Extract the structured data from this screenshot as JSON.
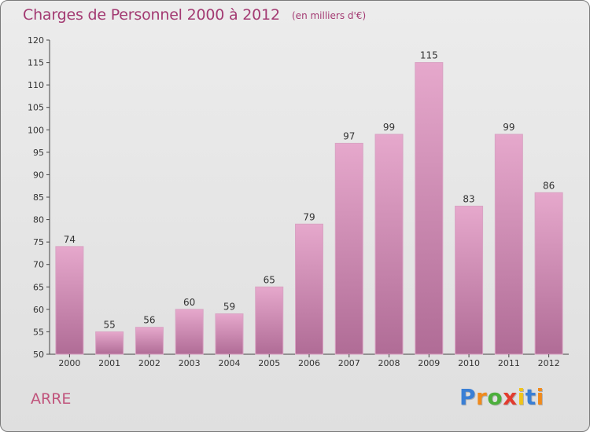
{
  "title": "Charges de Personnel 2000 à 2012",
  "subtitle": "(en milliers d'€)",
  "commune": "ARRE",
  "logo": {
    "letters": [
      {
        "ch": "P",
        "color": "#3a7fd5"
      },
      {
        "ch": "r",
        "color": "#f08a1c"
      },
      {
        "ch": "o",
        "color": "#4caf3c"
      },
      {
        "ch": "x",
        "color": "#e23b2e"
      },
      {
        "ch": "i",
        "color": "#f0c419"
      },
      {
        "ch": "t",
        "color": "#3a7fd5"
      },
      {
        "ch": "i",
        "color": "#f08a1c"
      }
    ]
  },
  "colors": {
    "bar_top": "#e6a8cc",
    "bar_bottom": "#b06c96",
    "axis": "#444444",
    "grid": "#9a9a9a"
  },
  "chart_data": {
    "type": "bar",
    "categories": [
      "2000",
      "2001",
      "2002",
      "2003",
      "2004",
      "2005",
      "2006",
      "2007",
      "2008",
      "2009",
      "2010",
      "2011",
      "2012"
    ],
    "values": [
      74,
      55,
      56,
      60,
      59,
      65,
      79,
      97,
      99,
      115,
      83,
      99,
      86
    ],
    "data_labels": [
      "74",
      "55",
      "56",
      "60",
      "59",
      "65",
      "79",
      "97",
      "99",
      "115",
      "83",
      "99",
      "86"
    ],
    "ylim": [
      50,
      120
    ],
    "yticks": [
      50,
      55,
      60,
      65,
      70,
      75,
      80,
      85,
      90,
      95,
      100,
      105,
      110,
      115,
      120
    ],
    "ytick_labels": [
      "50",
      "55",
      "60",
      "65",
      "70",
      "75",
      "80",
      "85",
      "90",
      "95",
      "100",
      "105",
      "110",
      "115",
      "120"
    ],
    "grid": false,
    "legend": "none"
  }
}
